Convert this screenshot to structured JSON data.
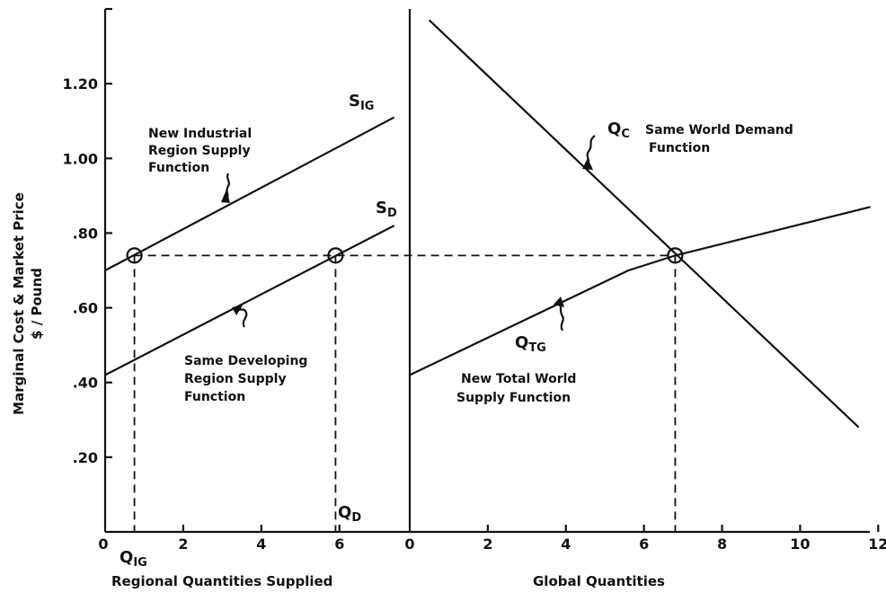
{
  "ylabel_lines": [
    "Marginal Cost & Market Price",
    "$ / Pound"
  ],
  "chart_data": [
    {
      "type": "line",
      "xlabel": "Regional Quantities Supplied",
      "ylabel": "Marginal Cost & Market Price $ / Pound",
      "xlim": [
        0,
        7.8
      ],
      "ylim": [
        0,
        1.4
      ],
      "x_ticks": [
        "0",
        "2",
        "4",
        "6"
      ],
      "x_tick_values": [
        0,
        2,
        4,
        6
      ],
      "y_ticks": [
        ".20",
        ".40",
        ".60",
        ".80",
        "1.00",
        "1.20"
      ],
      "y_tick_values": [
        0.2,
        0.4,
        0.6,
        0.8,
        1.0,
        1.2
      ],
      "series": [
        {
          "name": "S_IG",
          "x": [
            0,
            7.4
          ],
          "y": [
            0.7,
            1.11
          ]
        },
        {
          "name": "S_D",
          "x": [
            0,
            7.4
          ],
          "y": [
            0.42,
            0.82
          ]
        }
      ],
      "equilibrium_price": 0.74,
      "marked_points": [
        {
          "name": "Q_IG",
          "x": 0.75,
          "y": 0.74
        },
        {
          "name": "Q_D",
          "x": 5.9,
          "y": 0.74
        }
      ],
      "curve_labels": {
        "s_ig": "S",
        "s_ig_sub": "IG",
        "s_d": "S",
        "s_d_sub": "D",
        "q_ig": "Q",
        "q_ig_sub": "IG",
        "q_d": "Q",
        "q_d_sub": "D"
      },
      "annotations": [
        [
          "New Industrial",
          "Region Supply",
          "Function"
        ],
        [
          "Same Developing",
          "Region Supply",
          "Function"
        ]
      ]
    },
    {
      "type": "line",
      "xlabel": "Global Quantities",
      "xlim": [
        0,
        12.2
      ],
      "ylim": [
        0,
        1.4
      ],
      "x_ticks": [
        "0",
        "2",
        "4",
        "6",
        "8",
        "10",
        "12"
      ],
      "x_tick_values": [
        0,
        2,
        4,
        6,
        8,
        10,
        12
      ],
      "series": [
        {
          "name": "Q_C",
          "x": [
            0.5,
            11.5
          ],
          "y": [
            1.37,
            0.28
          ]
        },
        {
          "name": "Q_TG",
          "x": [
            0,
            5.6,
            6.8,
            11.8
          ],
          "y": [
            0.42,
            0.7,
            0.74,
            0.87
          ]
        }
      ],
      "marked_points": [
        {
          "name": "equilibrium",
          "x": 6.8,
          "y": 0.74
        }
      ],
      "curve_labels": {
        "q_c": "Q",
        "q_c_sub": "C",
        "q_tg": "Q",
        "q_tg_sub": "TG"
      },
      "annotations": [
        [
          "Same World Demand",
          "Function"
        ],
        [
          "New Total World",
          "Supply Function"
        ]
      ]
    }
  ]
}
